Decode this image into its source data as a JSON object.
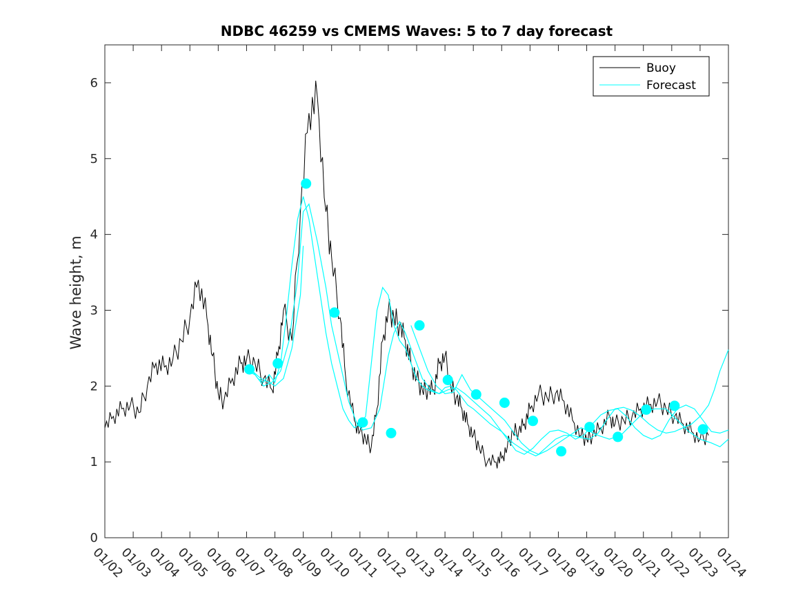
{
  "chart_data": {
    "type": "line",
    "title": "NDBC 46259 vs CMEMS Waves: 5 to 7 day forecast",
    "xlabel": "",
    "ylabel": "Wave height, m",
    "x_unit": "days since 01/02",
    "xlim": [
      0,
      22
    ],
    "ylim": [
      0,
      6.5
    ],
    "yticks": [
      0,
      1,
      2,
      3,
      4,
      5,
      6
    ],
    "xtick_labels": [
      "01/02",
      "01/03",
      "01/04",
      "01/05",
      "01/06",
      "01/07",
      "01/08",
      "01/09",
      "01/10",
      "01/11",
      "01/12",
      "01/13",
      "01/14",
      "01/15",
      "01/16",
      "01/17",
      "01/18",
      "01/19",
      "01/20",
      "01/21",
      "01/22",
      "01/23",
      "01/24"
    ],
    "legend": {
      "position": "top-right",
      "entries": [
        {
          "label": "Buoy",
          "color": "#000000"
        },
        {
          "label": "Forecast",
          "color": "#00ffff"
        }
      ]
    },
    "buoy": {
      "name": "Buoy",
      "color": "#000000",
      "x": [
        0,
        0.3,
        0.6,
        0.9,
        1.2,
        1.5,
        1.8,
        2.1,
        2.4,
        2.7,
        3.0,
        3.3,
        3.6,
        3.8,
        4.0,
        4.2,
        4.5,
        4.8,
        5.0,
        5.3,
        5.6,
        5.9,
        6.1,
        6.3,
        6.6,
        6.9,
        7.2,
        7.5,
        7.8,
        8.0,
        8.3,
        8.5,
        8.8,
        9.0,
        9.2,
        9.4,
        9.6,
        9.8,
        10.0,
        10.2,
        10.4,
        10.6,
        10.8,
        11.0,
        11.2,
        11.4,
        11.6,
        11.8,
        12.0,
        12.2,
        12.4,
        12.6,
        12.8,
        13.0,
        13.2,
        13.5,
        13.8,
        14.0,
        14.2,
        14.4,
        14.6,
        14.8,
        15.0,
        15.3,
        15.6,
        15.9,
        16.2,
        16.5,
        16.8,
        17.0,
        17.2,
        17.5,
        17.8,
        18.0,
        18.3,
        18.6,
        18.9,
        19.2,
        19.5,
        19.8,
        20.1,
        20.4,
        20.7,
        21.0,
        21.3
      ],
      "y": [
        1.45,
        1.6,
        1.7,
        1.75,
        1.65,
        2.0,
        2.3,
        2.25,
        2.35,
        2.6,
        2.9,
        3.4,
        2.9,
        2.4,
        1.9,
        1.8,
        2.1,
        2.3,
        2.35,
        2.3,
        2.1,
        1.95,
        2.4,
        3.0,
        2.6,
        4.3,
        5.6,
        5.8,
        4.3,
        3.7,
        2.9,
        2.1,
        1.55,
        1.4,
        1.3,
        1.2,
        1.7,
        2.6,
        3.0,
        2.9,
        2.8,
        2.6,
        2.3,
        2.1,
        1.95,
        1.95,
        1.95,
        2.3,
        2.4,
        2.0,
        1.85,
        1.7,
        1.5,
        1.35,
        1.2,
        1.0,
        1.0,
        1.05,
        1.2,
        1.4,
        1.4,
        1.5,
        1.7,
        1.9,
        1.85,
        1.9,
        1.8,
        1.55,
        1.35,
        1.3,
        1.35,
        1.45,
        1.6,
        1.5,
        1.55,
        1.6,
        1.7,
        1.75,
        1.8,
        1.7,
        1.6,
        1.5,
        1.4,
        1.3,
        1.35
      ]
    },
    "forecast_series": [
      {
        "name": "Forecast",
        "color": "#00ffff",
        "x": [
          5.0,
          5.2,
          5.4,
          5.6,
          5.8,
          6.0,
          6.2,
          6.4,
          6.6,
          6.8,
          7.0,
          7.2,
          7.4,
          7.6,
          7.8,
          8.0,
          8.2,
          8.4,
          8.6,
          8.8,
          9.0,
          9.2,
          9.4,
          9.6,
          9.8,
          10.0,
          10.2,
          10.4,
          10.6,
          10.8,
          11.0,
          11.2,
          11.4,
          11.6,
          11.8,
          12.0,
          12.2,
          12.4,
          12.6,
          12.8,
          13.0,
          13.3,
          13.6,
          14.0,
          14.4,
          14.8,
          15.2,
          15.6,
          16.0,
          16.4,
          16.8,
          17.0,
          17.4,
          17.8,
          18.2,
          18.6,
          19.0,
          19.4,
          19.8,
          20.2,
          20.6,
          21.0,
          21.4,
          21.7,
          22.0
        ],
        "y": [
          2.25,
          2.2,
          2.1,
          2.05,
          2.15,
          2.05,
          2.3,
          2.9,
          3.6,
          4.2,
          4.5,
          4.2,
          3.7,
          3.2,
          2.7,
          2.3,
          2.0,
          1.7,
          1.55,
          1.45,
          1.5,
          1.6,
          2.3,
          3.0,
          3.3,
          3.2,
          2.8,
          2.6,
          2.5,
          2.3,
          2.1,
          2.0,
          1.95,
          1.92,
          1.9,
          1.98,
          2.0,
          1.95,
          1.85,
          1.75,
          1.7,
          1.6,
          1.5,
          1.4,
          1.25,
          1.15,
          1.08,
          1.15,
          1.25,
          1.35,
          1.45,
          1.42,
          1.35,
          1.3,
          1.35,
          1.5,
          1.65,
          1.7,
          1.7,
          1.55,
          1.4,
          1.3,
          1.25,
          1.2,
          1.3
        ]
      },
      {
        "name": "Forecast",
        "color": "#00ffff",
        "x": [
          5.0,
          5.3,
          5.6,
          5.9,
          6.2,
          6.5,
          6.8,
          7.0,
          7.2,
          7.5,
          7.8,
          8.0,
          8.3,
          8.6,
          8.9,
          9.1,
          9.4,
          9.7,
          10.0,
          10.2,
          10.4,
          10.6,
          10.8,
          11.0,
          11.2,
          11.5,
          11.8,
          12.1,
          12.4,
          12.7,
          13.0,
          13.3,
          13.6,
          13.9,
          14.2,
          14.5,
          14.8,
          15.1,
          15.4,
          15.7,
          16.0,
          16.3,
          16.6,
          16.9,
          17.2,
          17.5,
          17.8,
          18.1,
          18.4,
          18.7,
          19.0,
          19.3,
          19.6,
          19.9,
          20.2,
          20.5,
          20.8,
          21.1,
          21.4,
          21.7,
          22.0
        ],
        "y": [
          2.2,
          2.15,
          2.0,
          2.05,
          2.2,
          2.6,
          3.4,
          4.3,
          4.4,
          3.9,
          3.3,
          2.8,
          2.3,
          1.8,
          1.5,
          1.42,
          1.45,
          1.7,
          2.4,
          2.7,
          2.85,
          2.7,
          2.5,
          2.3,
          2.1,
          1.95,
          1.9,
          1.95,
          1.98,
          1.9,
          1.8,
          1.7,
          1.6,
          1.45,
          1.3,
          1.15,
          1.1,
          1.18,
          1.3,
          1.4,
          1.42,
          1.38,
          1.3,
          1.35,
          1.5,
          1.62,
          1.68,
          1.7,
          1.6,
          1.45,
          1.35,
          1.3,
          1.35,
          1.55,
          1.7,
          1.75,
          1.7,
          1.55,
          1.4,
          1.38,
          1.42
        ]
      },
      {
        "name": "Forecast",
        "color": "#00ffff",
        "x": [
          5.0,
          5.2,
          5.5,
          5.8,
          6.0,
          6.3,
          6.6,
          6.9,
          7.0
        ],
        "y": [
          2.2,
          2.2,
          2.1,
          2.05,
          2.0,
          2.1,
          2.5,
          3.2,
          3.85
        ]
      },
      {
        "name": "Forecast",
        "color": "#00ffff",
        "x": [
          10.8,
          11.1,
          11.4,
          11.7,
          12.0,
          12.3,
          12.6,
          12.9,
          13.2,
          13.5,
          13.8,
          14.1,
          14.4,
          14.7,
          15.0,
          15.3,
          15.6,
          15.9,
          16.2,
          16.5,
          16.8,
          17.1,
          17.4,
          17.7,
          18.0,
          18.3,
          18.6,
          18.9,
          19.2,
          19.5,
          19.8,
          20.1,
          20.4,
          20.7,
          21.0,
          21.3,
          21.5,
          21.7,
          22.0
        ],
        "y": [
          2.8,
          2.5,
          2.2,
          2.0,
          1.9,
          1.92,
          2.15,
          1.95,
          1.85,
          1.75,
          1.65,
          1.55,
          1.4,
          1.25,
          1.15,
          1.1,
          1.2,
          1.3,
          1.35,
          1.35,
          1.32,
          1.3,
          1.38,
          1.55,
          1.7,
          1.72,
          1.68,
          1.6,
          1.5,
          1.42,
          1.38,
          1.4,
          1.45,
          1.5,
          1.6,
          1.75,
          1.95,
          2.2,
          2.48
        ]
      }
    ],
    "forecast_markers": {
      "name": "Forecast",
      "color": "#00ffff",
      "x": [
        5.1,
        6.1,
        7.1,
        8.1,
        9.1,
        10.1,
        11.1,
        12.1,
        13.1,
        14.1,
        15.1,
        16.1,
        17.1,
        18.1,
        19.1,
        20.1,
        21.1
      ],
      "y": [
        2.22,
        2.3,
        4.67,
        2.97,
        1.52,
        1.38,
        2.8,
        2.08,
        1.89,
        1.78,
        1.54,
        1.14,
        1.46,
        1.33,
        1.69,
        1.74,
        1.43
      ]
    }
  }
}
